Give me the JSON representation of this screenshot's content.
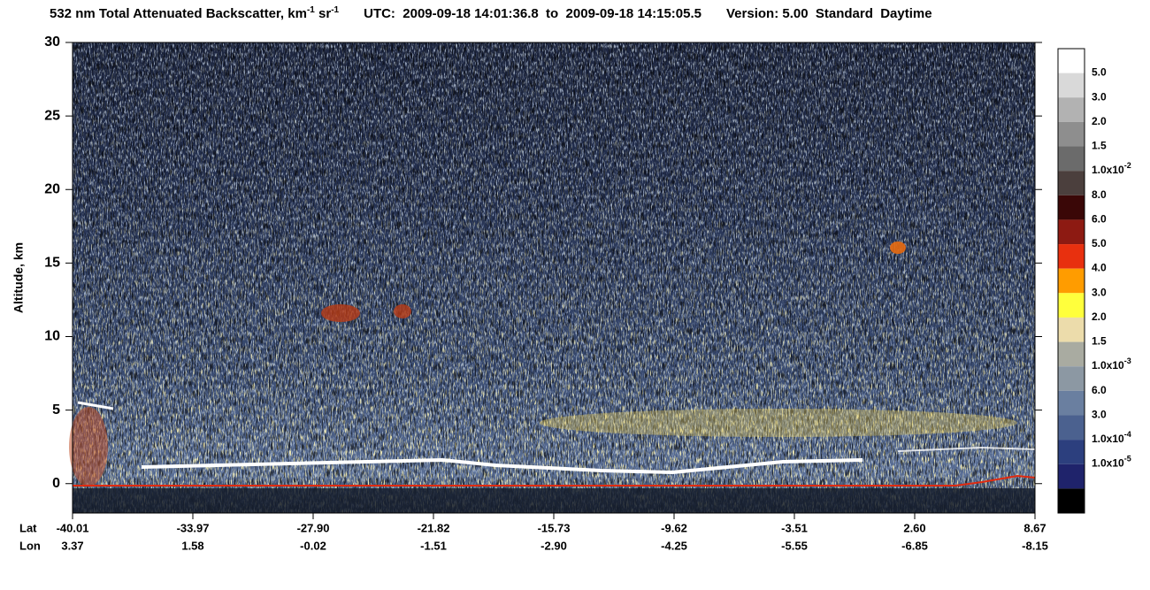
{
  "chart_data": {
    "type": "heatmap",
    "title_parts": [
      "532 nm Total Attenuated Backscatter, km",
      "-1",
      " sr",
      "-1",
      "UTC:  2009-09-18 14:01:36.8  to  2009-09-18 14:15:05.5",
      "Version: 5.00  Standard  Daytime"
    ],
    "ylabel": "Altitude, km",
    "ylim": [
      -2,
      30
    ],
    "yticks": [
      0,
      5,
      10,
      15,
      20,
      25,
      30
    ],
    "x_row_labels": [
      "Lat",
      "Lon"
    ],
    "lat_labels": [
      "-40.01",
      "-33.97",
      "-27.90",
      "-21.82",
      "-15.73",
      "-9.62",
      "-3.51",
      "2.60",
      "8.67"
    ],
    "lon_labels": [
      "3.37",
      "1.58",
      "-0.02",
      "-1.51",
      "-2.90",
      "-4.25",
      "-5.55",
      "-6.85",
      "-8.15"
    ],
    "colorbar_colors": [
      "#ffffff",
      "#d9d9d9",
      "#b2b2b2",
      "#8e8e8e",
      "#6b6b6b",
      "#4b3f3d",
      "#3a0707",
      "#8d1a12",
      "#e8300f",
      "#ff9c00",
      "#ffff3c",
      "#ecdcab",
      "#a9aba1",
      "#8c98a3",
      "#6a7fa0",
      "#4b618f",
      "#2c3f7e",
      "#1f236b",
      "#000000"
    ],
    "colorbar_labels": [
      {
        "mantissa": "5.0"
      },
      {
        "mantissa": "3.0"
      },
      {
        "mantissa": "2.0"
      },
      {
        "mantissa": "1.5"
      },
      {
        "mantissa": "1.0x10",
        "exponent": "-2"
      },
      {
        "mantissa": "8.0"
      },
      {
        "mantissa": "6.0"
      },
      {
        "mantissa": "5.0"
      },
      {
        "mantissa": "4.0"
      },
      {
        "mantissa": "3.0"
      },
      {
        "mantissa": "2.0"
      },
      {
        "mantissa": "1.5"
      },
      {
        "mantissa": "1.0x10",
        "exponent": "-3"
      },
      {
        "mantissa": "6.0"
      },
      {
        "mantissa": "3.0"
      },
      {
        "mantissa": "1.0x10",
        "exponent": "-4"
      },
      {
        "mantissa": "1.0x10",
        "exponent": "-5"
      }
    ]
  }
}
